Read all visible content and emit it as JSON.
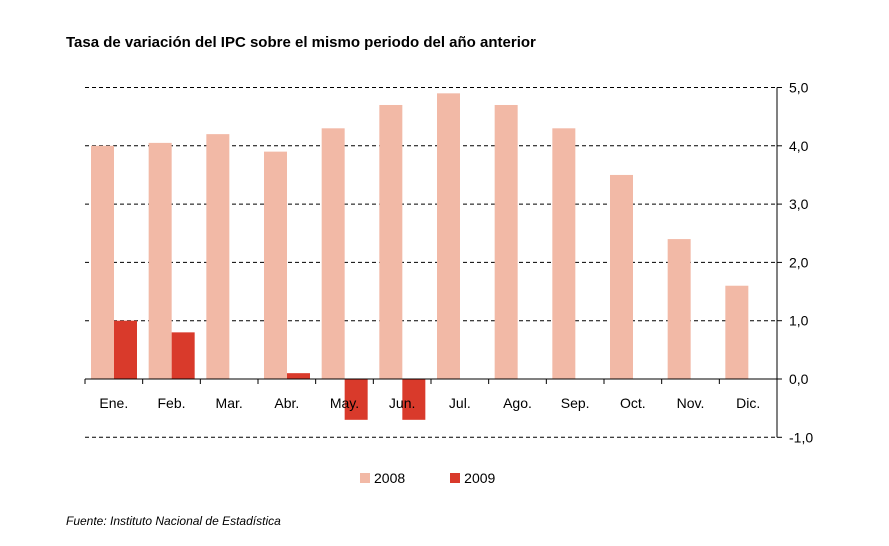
{
  "title": "Tasa de variación del IPC sobre el mismo periodo del año anterior",
  "source": "Fuente: Instituto Nacional de Estadística",
  "legend": {
    "s2008": "2008",
    "s2009": "2009"
  },
  "chart_data": {
    "type": "bar",
    "title": "Tasa de variación del IPC sobre el mismo periodo del año anterior",
    "categories": [
      "Ene.",
      "Feb.",
      "Mar.",
      "Abr.",
      "May.",
      "Jun.",
      "Jul.",
      "Ago.",
      "Sep.",
      "Oct.",
      "Nov.",
      "Dic."
    ],
    "series": [
      {
        "name": "2008",
        "color": "#f2b9a6",
        "values": [
          4.0,
          4.05,
          4.2,
          3.9,
          4.3,
          4.7,
          4.9,
          4.7,
          4.3,
          3.5,
          2.4,
          1.6
        ]
      },
      {
        "name": "2009",
        "color": "#d93a2b",
        "values": [
          1.0,
          0.8,
          null,
          0.1,
          -0.7,
          -0.7,
          null,
          null,
          null,
          null,
          null,
          null
        ]
      }
    ],
    "yticks": [
      "5,0",
      "4,0",
      "3,0",
      "2,0",
      "1,0",
      "0,0",
      "-1,0"
    ],
    "ylim": [
      -1,
      5
    ],
    "grid": true,
    "legend_position": "bottom"
  }
}
